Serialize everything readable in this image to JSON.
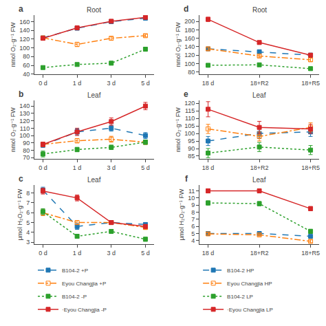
{
  "chart_data": [
    {
      "type": "line",
      "title": "Root",
      "annotations": [
        "a"
      ],
      "ylabel": "nmol O₂·g⁻¹ FW",
      "categories": [
        "0 d",
        "1 d",
        "3 d",
        "5 d"
      ],
      "series": [
        {
          "name": "B104-2 +P",
          "values": [
            123,
            145,
            160,
            168
          ],
          "yerr": [
            3,
            4,
            4,
            3
          ],
          "line_style": "dash",
          "marker": "square",
          "color": "#1f77b4"
        },
        {
          "name": "Eyou Changjia +P",
          "values": [
            123,
            108,
            122,
            128
          ],
          "yerr": [
            3,
            5,
            4,
            3
          ],
          "line_style": "dashdot",
          "marker": "square-open",
          "color": "#ff7f0e"
        },
        {
          "name": "B104-2 -P",
          "values": [
            55,
            62,
            65,
            97
          ],
          "yerr": [
            3,
            3,
            4,
            4
          ],
          "line_style": "dot",
          "marker": "square",
          "color": "#2ca02c"
        },
        {
          "name": "·Eyou Changjia -P",
          "values": [
            122,
            146,
            161,
            170
          ],
          "yerr": [
            3,
            4,
            4,
            3
          ],
          "line_style": "solid",
          "marker": "square",
          "color": "#d62728"
        }
      ],
      "ylim": [
        40,
        175
      ],
      "yticks": [
        40,
        60,
        80,
        100,
        120,
        140,
        160
      ],
      "grid": false,
      "legend": "bottom"
    },
    {
      "type": "line",
      "title": "Leaf",
      "annotations": [
        "b"
      ],
      "ylabel": "nmol O₂·g⁻¹ FW",
      "categories": [
        "0 d",
        "1 d",
        "3 d",
        "5 d"
      ],
      "series": [
        {
          "name": "B104-2 +P",
          "values": [
            87,
            105,
            110,
            100
          ],
          "yerr": [
            3,
            4,
            4,
            4
          ],
          "line_style": "dash",
          "marker": "square",
          "color": "#1f77b4"
        },
        {
          "name": "Eyou Changjia +P",
          "values": [
            88,
            93,
            95,
            91
          ],
          "yerr": [
            3,
            3,
            4,
            3
          ],
          "line_style": "dashdot",
          "marker": "square-open",
          "color": "#ff7f0e"
        },
        {
          "name": "B104-2 -P",
          "values": [
            75,
            81,
            84,
            91
          ],
          "yerr": [
            4,
            3,
            3,
            3
          ],
          "line_style": "dot",
          "marker": "square",
          "color": "#2ca02c"
        },
        {
          "name": "·Eyou Changjia -P",
          "values": [
            88,
            105,
            119,
            140
          ],
          "yerr": [
            3,
            5,
            5,
            5
          ],
          "line_style": "solid",
          "marker": "square",
          "color": "#d62728"
        }
      ],
      "ylim": [
        68,
        148
      ],
      "yticks": [
        70,
        80,
        90,
        100,
        110,
        120,
        130,
        140
      ],
      "grid": false,
      "legend": "bottom"
    },
    {
      "type": "line",
      "title": "Leaf",
      "annotations": [
        "c"
      ],
      "ylabel": "μmol H₂O₂·g⁻¹ FW",
      "categories": [
        "0 d",
        "1 d",
        "3 d",
        "5 d"
      ],
      "series": [
        {
          "name": "B104-2 +P",
          "values": [
            8.3,
            4.6,
            5.0,
            4.8
          ],
          "yerr": [
            0.3,
            0.3,
            0.2,
            0.2
          ],
          "line_style": "dash",
          "marker": "square",
          "color": "#1f77b4"
        },
        {
          "name": "Eyou Changjia +P",
          "values": [
            6.0,
            5.0,
            5.0,
            4.5
          ],
          "yerr": [
            0.3,
            0.2,
            0.2,
            0.2
          ],
          "line_style": "dashdot",
          "marker": "square-open",
          "color": "#ff7f0e"
        },
        {
          "name": "B104-2 -P",
          "values": [
            6.1,
            3.6,
            4.1,
            3.3
          ],
          "yerr": [
            0.3,
            0.2,
            0.2,
            0.2
          ],
          "line_style": "dot",
          "marker": "square",
          "color": "#2ca02c"
        },
        {
          "name": "·Eyou Changjia -P",
          "values": [
            8.2,
            7.5,
            5.0,
            4.6
          ],
          "yerr": [
            0.3,
            0.3,
            0.2,
            0.2
          ],
          "line_style": "solid",
          "marker": "square",
          "color": "#d62728"
        }
      ],
      "ylim": [
        2.8,
        8.8
      ],
      "yticks": [
        3,
        4,
        5,
        6,
        7,
        8
      ],
      "grid": false,
      "legend": "bottom"
    },
    {
      "type": "line",
      "title": "Root",
      "annotations": [
        "d"
      ],
      "ylabel": "nmol O₂·g⁻¹ FW",
      "categories": [
        "18 d",
        "18+R2",
        "18+R5"
      ],
      "series": [
        {
          "name": "B104-2 HP",
          "values": [
            135,
            128,
            120
          ],
          "yerr": [
            4,
            4,
            4
          ],
          "line_style": "dash",
          "marker": "square",
          "color": "#1f77b4"
        },
        {
          "name": "Eyou Changjia HP",
          "values": [
            135,
            118,
            109
          ],
          "yerr": [
            4,
            4,
            4
          ],
          "line_style": "dashdot",
          "marker": "square-open",
          "color": "#ff7f0e"
        },
        {
          "name": "B104-2 LP",
          "values": [
            96,
            97,
            88
          ],
          "yerr": [
            3,
            3,
            3
          ],
          "line_style": "dot",
          "marker": "square",
          "color": "#2ca02c"
        },
        {
          "name": "·Eyou Changjia LP",
          "values": [
            205,
            150,
            120
          ],
          "yerr": [
            5,
            4,
            4
          ],
          "line_style": "solid",
          "marker": "square",
          "color": "#d62728"
        }
      ],
      "ylim": [
        75,
        215
      ],
      "yticks": [
        80,
        100,
        120,
        140,
        160,
        180,
        200
      ],
      "grid": false,
      "legend": "bottom"
    },
    {
      "type": "line",
      "title": "Leaf",
      "annotations": [
        "e"
      ],
      "ylabel": "nmol O₂·g⁻¹ FW",
      "categories": [
        "18 d",
        "18+R2",
        "18+R5"
      ],
      "series": [
        {
          "name": "B104-2 HP",
          "values": [
            95,
            100,
            101
          ],
          "yerr": [
            3,
            3,
            3
          ],
          "line_style": "dash",
          "marker": "square",
          "color": "#1f77b4"
        },
        {
          "name": "Eyou Changjia HP",
          "values": [
            103,
            98,
            104
          ],
          "yerr": [
            3,
            3,
            3
          ],
          "line_style": "dashdot",
          "marker": "square-open",
          "color": "#ff7f0e"
        },
        {
          "name": "B104-2 LP",
          "values": [
            87,
            91,
            89
          ],
          "yerr": [
            3,
            3,
            3
          ],
          "line_style": "dot",
          "marker": "square",
          "color": "#2ca02c"
        },
        {
          "name": "·Eyou Changjia LP",
          "values": [
            116,
            104,
            103
          ],
          "yerr": [
            5,
            4,
            3
          ],
          "line_style": "solid",
          "marker": "square",
          "color": "#d62728"
        }
      ],
      "ylim": [
        83,
        122
      ],
      "yticks": [
        85,
        90,
        95,
        100,
        105,
        110,
        115,
        120
      ],
      "grid": false,
      "legend": "bottom"
    },
    {
      "type": "line",
      "title": "Leaf",
      "annotations": [
        "f"
      ],
      "ylabel": "μmol H₂O₂·g⁻¹ FW",
      "categories": [
        "18 d",
        "18+R2",
        "18+R5"
      ],
      "series": [
        {
          "name": "B104-2 HP",
          "values": [
            5.0,
            5.0,
            4.6
          ],
          "yerr": [
            0.15,
            0.15,
            0.2
          ],
          "line_style": "dash",
          "marker": "square",
          "color": "#1f77b4"
        },
        {
          "name": "Eyou Changjia HP",
          "values": [
            4.95,
            4.8,
            3.9
          ],
          "yerr": [
            0.15,
            0.15,
            0.2
          ],
          "line_style": "dashdot",
          "marker": "square-open",
          "color": "#ff7f0e"
        },
        {
          "name": "B104-2 LP",
          "values": [
            9.3,
            9.2,
            5.3
          ],
          "yerr": [
            0.3,
            0.3,
            0.3
          ],
          "line_style": "dot",
          "marker": "square",
          "color": "#2ca02c"
        },
        {
          "name": "·Eyou Changjia LP",
          "values": [
            11.0,
            11.0,
            8.5
          ],
          "yerr": [
            0.3,
            0.3,
            0.3
          ],
          "line_style": "solid",
          "marker": "square",
          "color": "#d62728"
        }
      ],
      "ylim": [
        3.5,
        11.8
      ],
      "yticks": [
        4,
        5,
        6,
        7,
        8,
        9,
        10,
        11
      ],
      "grid": false,
      "legend": "bottom"
    }
  ]
}
